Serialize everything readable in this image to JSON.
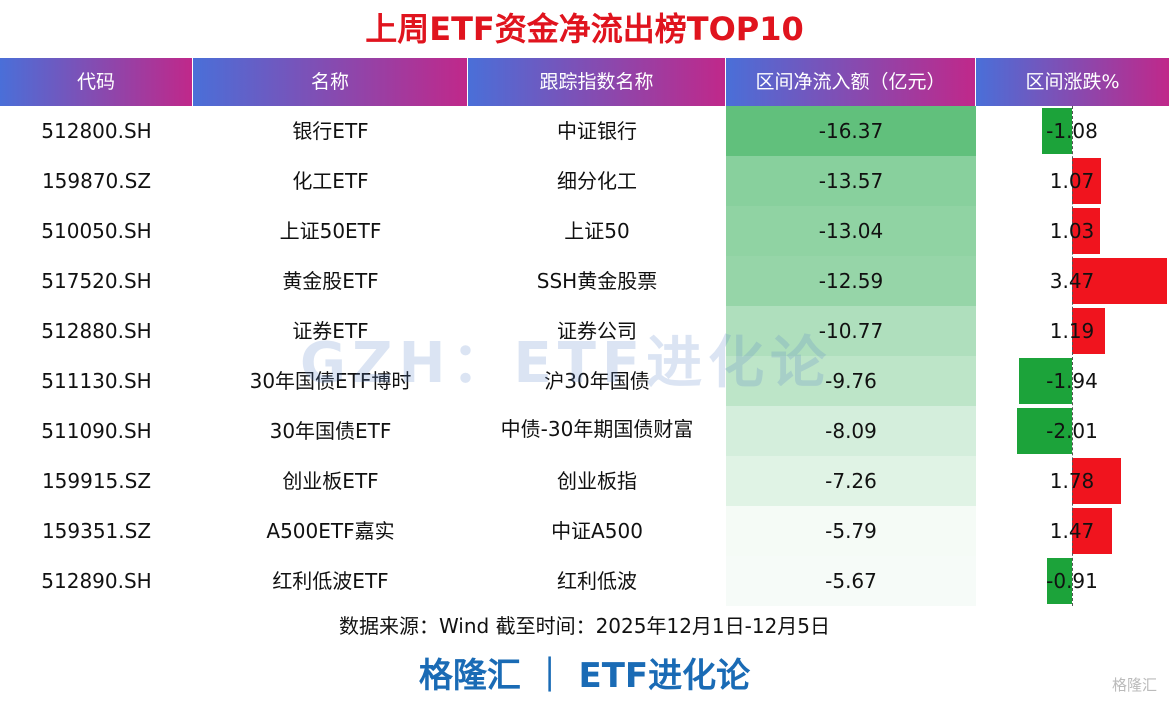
{
  "title": "上周ETF资金净流出榜TOP10",
  "table": {
    "headers": [
      "代码",
      "名称",
      "跟踪指数名称",
      "区间净流入额（亿元）",
      "区间涨跌%"
    ],
    "rows": [
      [
        "512800.SH",
        "银行ETF",
        "中证银行",
        -16.37,
        -1.08
      ],
      [
        "159870.SZ",
        "化工ETF",
        "细分化工",
        -13.57,
        1.07
      ],
      [
        "510050.SH",
        "上证50ETF",
        "上证50",
        -13.04,
        1.03
      ],
      [
        "517520.SH",
        "黄金股ETF",
        "SSH黄金股票",
        -12.59,
        3.47
      ],
      [
        "512880.SH",
        "证券ETF",
        "证券公司",
        -10.77,
        1.19
      ],
      [
        "511130.SH",
        "30年国债ETF博时",
        "沪30年国债",
        -9.76,
        -1.94
      ],
      [
        "511090.SH",
        "30年国债ETF",
        "中债-30年期国债财富",
        -8.09,
        -2.01
      ],
      [
        "159915.SZ",
        "创业板ETF",
        "创业板指",
        -7.26,
        1.78
      ],
      [
        "159351.SZ",
        "A500ETF嘉实",
        "中证A500",
        -5.79,
        1.47
      ],
      [
        "512890.SH",
        "红利低波ETF",
        "红利低波",
        -5.67,
        -0.91
      ]
    ]
  },
  "watermark": "GZH：ETF进化论",
  "source": "数据来源：Wind 截至时间：2025年12月1日-12月5日",
  "brand": "格隆汇 ｜ ETF进化论",
  "logo": "格隆汇"
}
